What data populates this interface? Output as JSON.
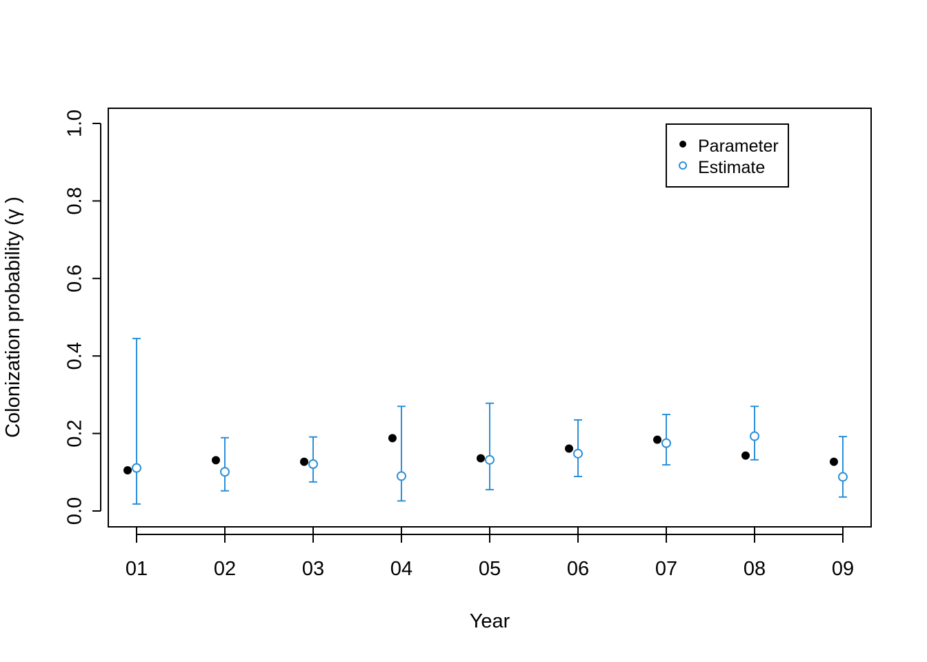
{
  "chart_data": {
    "type": "scatter",
    "xlabel": "Year",
    "ylabel": "Colonization probability (γ )",
    "categories": [
      "01",
      "02",
      "03",
      "04",
      "05",
      "06",
      "07",
      "08",
      "09"
    ],
    "ylim": [
      0,
      1
    ],
    "yticks": [
      "0.0",
      "0.2",
      "0.4",
      "0.6",
      "0.8",
      "1.0"
    ],
    "grid": false,
    "legend_position": "top-right",
    "series": [
      {
        "name": "Parameter",
        "marker": "filled-circle",
        "color": "#000000",
        "values": [
          0.105,
          0.131,
          0.127,
          0.188,
          0.136,
          0.161,
          0.184,
          0.143,
          0.127
        ]
      },
      {
        "name": "Estimate",
        "marker": "open-circle",
        "color": "#2B8FD8",
        "values": [
          0.111,
          0.101,
          0.121,
          0.09,
          0.132,
          0.148,
          0.175,
          0.193,
          0.088
        ],
        "lower": [
          0.018,
          0.052,
          0.075,
          0.026,
          0.055,
          0.089,
          0.119,
          0.132,
          0.036
        ],
        "upper": [
          0.445,
          0.189,
          0.191,
          0.27,
          0.278,
          0.235,
          0.249,
          0.27,
          0.192
        ]
      }
    ]
  }
}
